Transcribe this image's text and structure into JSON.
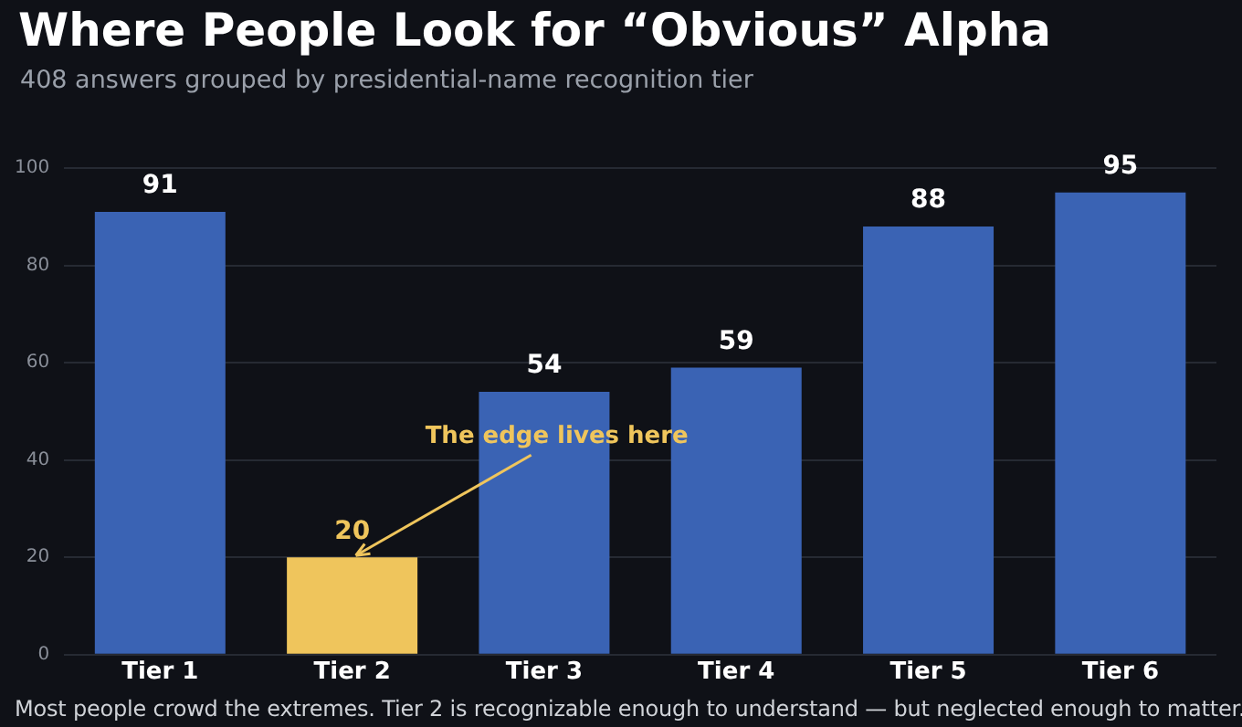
{
  "chart_data": {
    "type": "bar",
    "title": "Where People Look for “Obvious” Alpha",
    "subtitle": "408 answers grouped by presidential-name recognition tier",
    "categories": [
      "Tier 1",
      "Tier 2",
      "Tier 3",
      "Tier 4",
      "Tier 5",
      "Tier 6"
    ],
    "values": [
      91,
      20,
      54,
      59,
      88,
      95
    ],
    "colors": [
      "#3a63b4",
      "#efc55c",
      "#3a63b4",
      "#3a63b4",
      "#3a63b4",
      "#3a63b4"
    ],
    "ylim": [
      0,
      100
    ],
    "yticks": [
      0,
      20,
      40,
      60,
      80,
      100
    ],
    "grid": "y",
    "legend": false,
    "data_labels": true,
    "annotations": [
      {
        "text": "The edge lives here",
        "x": "Tier 2",
        "y": 20
      },
      "Most people crowd the extremes. Tier 2 is recognizable enough to understand — but neglected enough to matter."
    ]
  }
}
